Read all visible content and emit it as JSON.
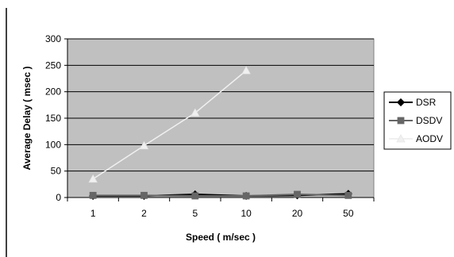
{
  "chart_data": {
    "type": "line",
    "categories": [
      "1",
      "2",
      "5",
      "10",
      "20",
      "50"
    ],
    "xlabel": "Speed ( m/sec )",
    "ylabel": "Average Delay ( msec )",
    "ylim": [
      0,
      300
    ],
    "yticks": [
      "0",
      "50",
      "100",
      "150",
      "200",
      "250",
      "300"
    ],
    "grid": true,
    "legend_position": "right",
    "plot_background": "#c0c0c0",
    "series": [
      {
        "name": "DSR",
        "values": [
          3,
          3,
          6,
          3,
          4,
          7
        ],
        "color": "#000000",
        "marker": "diamond"
      },
      {
        "name": "DSDV",
        "values": [
          4,
          4,
          3,
          3,
          6,
          4
        ],
        "color": "#666666",
        "marker": "square"
      },
      {
        "name": "AODV",
        "values": [
          35,
          98,
          160,
          240,
          null,
          null
        ],
        "color": "#f0f0f0",
        "marker": "triangle"
      }
    ]
  }
}
